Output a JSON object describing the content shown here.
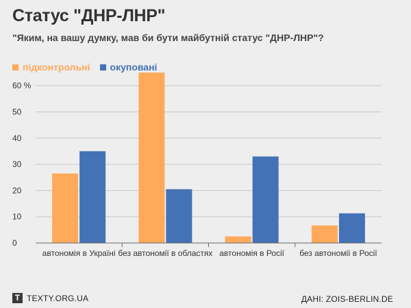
{
  "header": {
    "title": "Статус \"ДНР-ЛНР\"",
    "subtitle": "\"Яким, на вашу думку, мав би бути майбутній статус \"ДНР-ЛНР\"?"
  },
  "footer": {
    "logo_letter": "T",
    "site": "TEXTY.ORG.UA",
    "source": "ДАНІ: ZOIS-BERLIN.DE"
  },
  "chart_data": {
    "type": "bar",
    "categories": [
      "автономія в Україні",
      "без автономії в областях",
      "автономія в Росії",
      "без автономії в Росії"
    ],
    "series": [
      {
        "name": "підконтрольні",
        "color": "#ffaa5a",
        "values": [
          26.5,
          65,
          2.5,
          6.7
        ]
      },
      {
        "name": "окуповані",
        "color": "#4472b6",
        "values": [
          35,
          20.5,
          33,
          11.3
        ]
      }
    ],
    "ylim": [
      0,
      65
    ],
    "yticks": [
      0,
      10,
      20,
      30,
      40,
      50,
      60
    ],
    "ytick_labels": [
      "0",
      "10",
      "20",
      "30",
      "40",
      "50",
      "60 %"
    ],
    "legend_position": "top-left",
    "grid": true
  }
}
